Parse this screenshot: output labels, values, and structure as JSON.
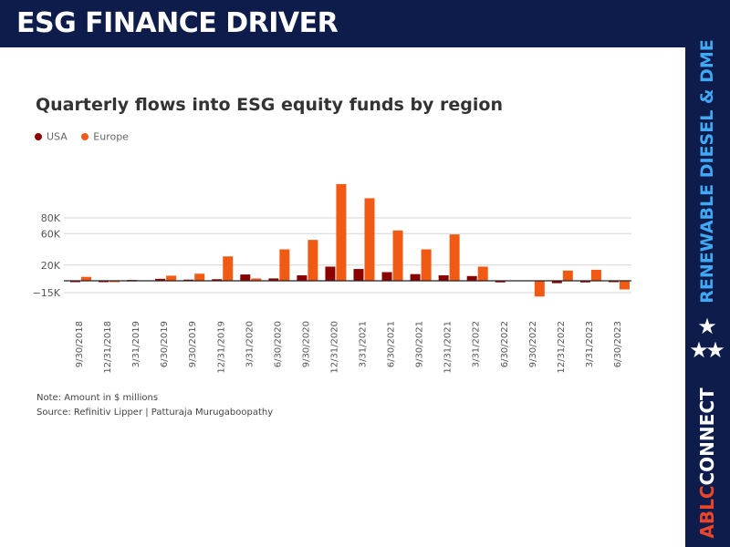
{
  "banner": {
    "title": "ESG FINANCE DRIVER"
  },
  "sidebar": {
    "tagline": "RENEWABLE DIESEL & DME",
    "stars": [
      "★",
      "★",
      "★"
    ],
    "brand_part_1": "ABLC",
    "brand_part_2": "CONNECT"
  },
  "colors": {
    "navy": "#0d1c4a",
    "usa": "#8b0000",
    "europe": "#f05a14",
    "accent_blue": "#3fa9f5"
  },
  "chart_data": {
    "type": "bar",
    "title": "Quarterly flows into ESG equity funds by region",
    "categories": [
      "9/30/2018",
      "12/31/2018",
      "3/31/2019",
      "6/30/2019",
      "9/30/2019",
      "12/31/2019",
      "3/31/2020",
      "6/30/2020",
      "9/30/2020",
      "12/31/2020",
      "3/31/2021",
      "6/30/2021",
      "9/30/2021",
      "12/31/2021",
      "3/31/2022",
      "6/30/2022",
      "9/30/2022",
      "12/31/2022",
      "3/31/2023",
      "6/30/2023"
    ],
    "series": [
      {
        "name": "USA",
        "color": "#8b0000",
        "values": [
          -1000,
          -1000,
          1000,
          2500,
          1500,
          2000,
          8000,
          3000,
          7000,
          18000,
          15000,
          11000,
          8500,
          7000,
          6000,
          -2000,
          0,
          -3000,
          -2000,
          -1000
        ]
      },
      {
        "name": "Europe",
        "color": "#f05a14",
        "values": [
          5000,
          -1000,
          0,
          6500,
          9000,
          31000,
          3000,
          40000,
          52000,
          123000,
          105000,
          64000,
          40000,
          59000,
          18000,
          0,
          -20000,
          13000,
          14000,
          -11000
        ]
      }
    ],
    "yticks": [
      -15000,
      20000,
      60000,
      80000
    ],
    "ytick_labels": [
      "−15K",
      "20K",
      "60K",
      "80K"
    ],
    "ylim": [
      -20000,
      125000
    ],
    "grid": true,
    "legend_position": "top-left",
    "notes": [
      "Note: Amount in $ millions",
      "Source: Refinitiv Lipper | Patturaja Murugaboopathy"
    ]
  }
}
